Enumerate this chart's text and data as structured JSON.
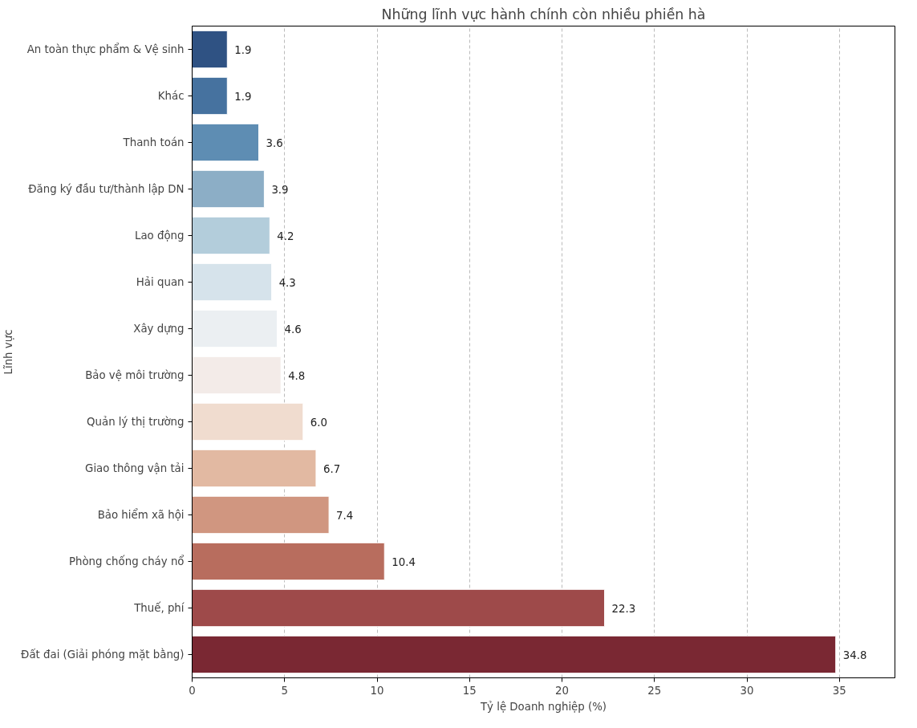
{
  "chart_data": {
    "type": "bar",
    "orientation": "horizontal",
    "title": "Những lĩnh vực hành chính còn nhiều phiền hà",
    "xlabel": "Tỷ lệ Doanh nghiệp (%)",
    "ylabel": "Lĩnh vực",
    "categories": [
      "An toàn thực phẩm & Vệ sinh",
      "Khác",
      "Thanh toán",
      "Đăng ký đầu tư/thành lập DN",
      "Lao động",
      "Hải quan",
      "Xây dựng",
      "Bảo vệ môi trường",
      "Quản lý thị trường",
      "Giao thông vận tải",
      "Bảo hiểm xã hội",
      "Phòng chống cháy nổ",
      "Thuế, phí",
      "Đất đai (Giải phóng mặt bằng)"
    ],
    "values": [
      1.9,
      1.9,
      3.6,
      3.9,
      4.2,
      4.3,
      4.6,
      4.8,
      6.0,
      6.7,
      7.4,
      10.4,
      22.3,
      34.8
    ],
    "value_labels": [
      "1.9",
      "1.9",
      "3.6",
      "3.9",
      "4.2",
      "4.3",
      "4.6",
      "4.8",
      "6.0",
      "6.7",
      "7.4",
      "10.4",
      "22.3",
      "34.8"
    ],
    "colors": [
      "#2f5283",
      "#46729f",
      "#5e8db3",
      "#8caec6",
      "#b3cddb",
      "#d6e3eb",
      "#ebeff2",
      "#f3ebe8",
      "#f0dccf",
      "#e2b9a2",
      "#d09680",
      "#b86d5e",
      "#9e4a4a",
      "#7a2833"
    ],
    "xlim": [
      0,
      38
    ],
    "xticks": [
      0,
      5,
      10,
      15,
      20,
      25,
      30,
      35
    ],
    "grid": "x",
    "line_style": "dashed"
  }
}
